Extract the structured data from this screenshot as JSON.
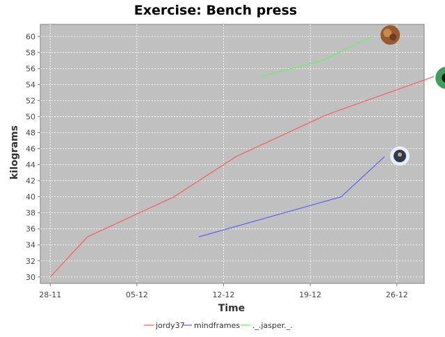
{
  "chart_data": {
    "type": "line",
    "title": "Exercise: Bench press",
    "xlabel": "Time",
    "ylabel": "kilograms",
    "x_ticks": [
      "28-11",
      "05-12",
      "12-12",
      "19-12",
      "26-12"
    ],
    "y_ticks": [
      30,
      32,
      34,
      36,
      38,
      40,
      42,
      44,
      46,
      48,
      50,
      52,
      54,
      56,
      58,
      60
    ],
    "x_range_days": [
      -0.8,
      30.2
    ],
    "ylim": [
      29.2,
      61.5
    ],
    "grid": true,
    "legend": "bottom",
    "series": [
      {
        "name": "jordy37",
        "color": "#ff5555",
        "x": [
          0,
          3,
          10,
          15,
          22,
          23,
          31
        ],
        "y": [
          30,
          35,
          40,
          45,
          50,
          50.6,
          55
        ]
      },
      {
        "name": "mindframes",
        "color": "#5555ff",
        "x": [
          12,
          23.5,
          27
        ],
        "y": [
          35,
          40,
          45
        ]
      },
      {
        "name": "._.jasper._.",
        "color": "#55ff55",
        "x": [
          17,
          22,
          26
        ],
        "y": [
          55,
          57,
          60
        ]
      }
    ]
  }
}
